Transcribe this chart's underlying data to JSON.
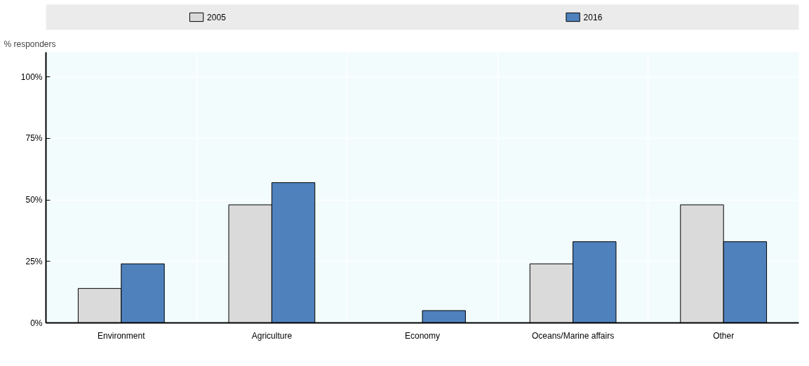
{
  "chart_data": {
    "type": "bar",
    "ylabel": "% responders",
    "categories": [
      "Environment",
      "Agriculture",
      "Economy",
      "Oceans/Marine affairs",
      "Other"
    ],
    "series": [
      {
        "name": "2005",
        "color": "#dadada",
        "values": [
          14,
          48,
          0,
          24,
          48
        ]
      },
      {
        "name": "2016",
        "color": "#4f81bd",
        "values": [
          24,
          57,
          5,
          33,
          33
        ]
      }
    ],
    "ylim": [
      0,
      110
    ],
    "yticks": [
      {
        "value": 0,
        "label": "0%"
      },
      {
        "value": 25,
        "label": "25%"
      },
      {
        "value": 50,
        "label": "50%"
      },
      {
        "value": 75,
        "label": "75%"
      },
      {
        "value": 100,
        "label": "100%"
      }
    ],
    "grid": true,
    "legend": "top"
  }
}
